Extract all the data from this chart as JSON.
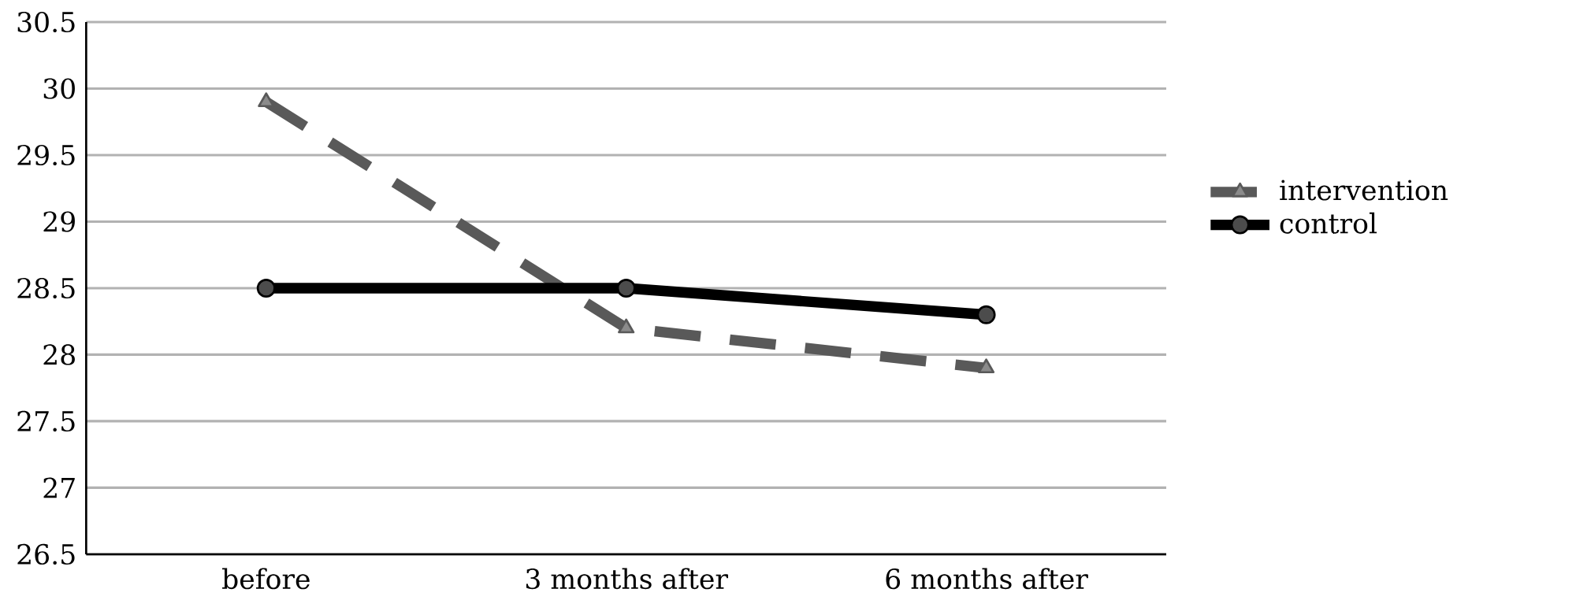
{
  "chart_data": {
    "type": "line",
    "categories": [
      "before",
      "3 months after",
      "6 months after"
    ],
    "series": [
      {
        "name": "intervention",
        "color": "#595959",
        "marker": "triangle",
        "line_style": "dashed",
        "values": [
          29.9,
          28.2,
          27.9
        ]
      },
      {
        "name": "control",
        "color": "#000000",
        "marker": "circle",
        "line_style": "solid",
        "values": [
          28.5,
          28.5,
          28.3
        ]
      }
    ],
    "ylim": [
      26.5,
      30.5
    ],
    "yticks": [
      26.5,
      27,
      27.5,
      28,
      28.5,
      29,
      29.5,
      30,
      30.5
    ],
    "grid": "y",
    "legend": "right"
  }
}
